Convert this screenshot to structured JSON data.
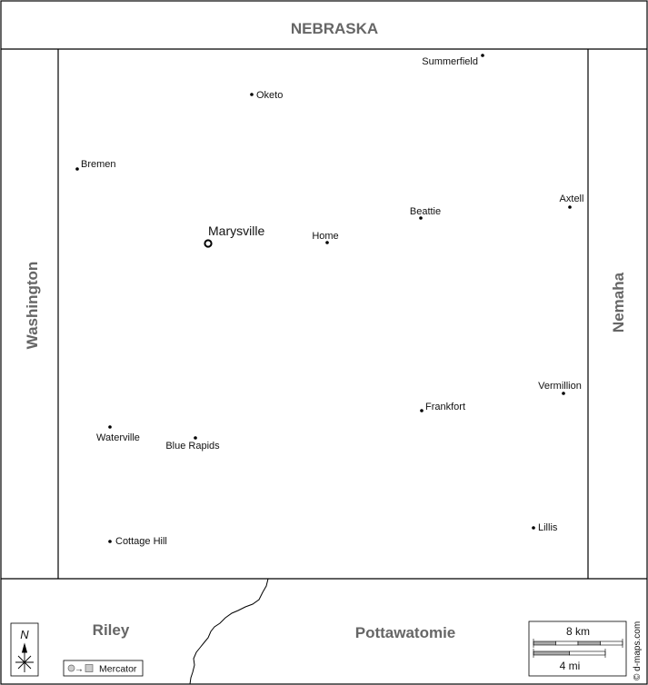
{
  "neighbors": {
    "north": "NEBRASKA",
    "west": "Washington",
    "east": "Nemaha",
    "south_west": "Riley",
    "south_east": "Pottawatomie"
  },
  "county_seat": {
    "name": "Marysville"
  },
  "towns": [
    {
      "name": "Summerfield"
    },
    {
      "name": "Oketo"
    },
    {
      "name": "Bremen"
    },
    {
      "name": "Axtell"
    },
    {
      "name": "Beattie"
    },
    {
      "name": "Home"
    },
    {
      "name": "Vermillion"
    },
    {
      "name": "Frankfort"
    },
    {
      "name": "Waterville"
    },
    {
      "name": "Blue Rapids"
    },
    {
      "name": "Cottage Hill"
    },
    {
      "name": "Lillis"
    }
  ],
  "compass": {
    "label": "N"
  },
  "projection": {
    "label": "Mercator"
  },
  "scale": {
    "km_label": "8 km",
    "mi_label": "4 mi"
  },
  "credit": "© d-maps.com",
  "colors": {
    "region_label": "#666666",
    "text": "#111111",
    "border": "#000000",
    "background": "#ffffff"
  }
}
